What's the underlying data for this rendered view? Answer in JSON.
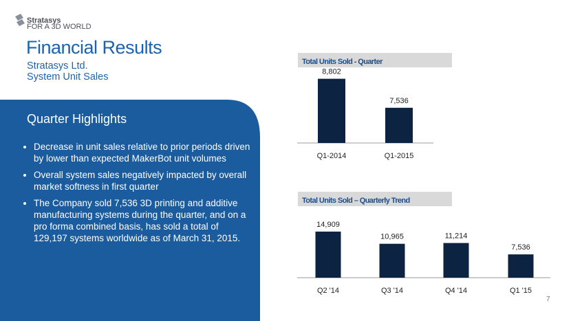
{
  "header": {
    "logo": "Stratasys",
    "tagline": "FOR A 3D WORLD",
    "title": "Financial Results",
    "subtitle": [
      "Stratasys Ltd.",
      "System Unit Sales"
    ]
  },
  "highlights": {
    "heading": "Quarter Highlights",
    "bullets": [
      "Decrease in unit sales relative to prior periods driven by lower than expected MakerBot unit volumes",
      "Overall system sales negatively impacted by overall market softness in first quarter",
      "The Company sold 7,536 3D printing and additive manufacturing systems during the quarter, and on a pro forma combined basis, has sold a total of 129,197 systems worldwide as of March 31, 2015."
    ]
  },
  "page_number": "7",
  "chart_data": [
    {
      "type": "bar",
      "title": "Total Units Sold - Quarter",
      "categories": [
        "Q1-2014",
        "Q1-2015"
      ],
      "values": [
        8802,
        7536
      ],
      "value_labels": [
        "8,802",
        "7,536"
      ],
      "color": "#0c2341",
      "ylim": [
        6000,
        9000
      ]
    },
    {
      "type": "bar",
      "title": "Total Units Sold – Quarterly Trend",
      "categories": [
        "Q2 '14",
        "Q3 '14",
        "Q4 '14",
        "Q1 '15"
      ],
      "values": [
        14909,
        10965,
        11214,
        7536
      ],
      "value_labels": [
        "14,909",
        "10,965",
        "11,214",
        "7,536"
      ],
      "color": "#0c2341",
      "ylim": [
        0,
        16000
      ]
    }
  ]
}
